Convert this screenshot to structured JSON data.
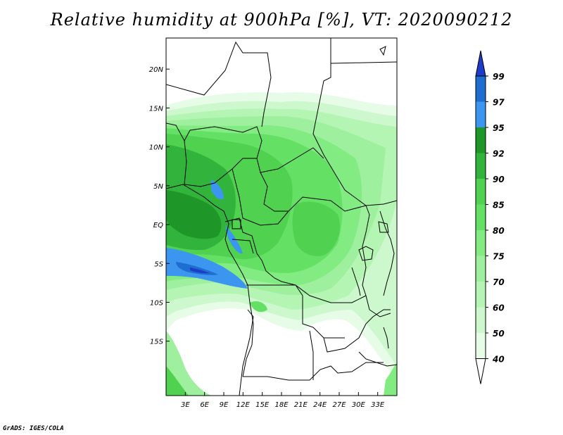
{
  "title": "Relative humidity at 900hPa [%], VT: 2020090212",
  "credit": "GrADS: IGES/COLA",
  "map": {
    "lon_range": [
      0,
      36
    ],
    "lat_range": [
      -22,
      24
    ],
    "lat_ticks": [
      {
        "value": 20,
        "label": "20N"
      },
      {
        "value": 15,
        "label": "15N"
      },
      {
        "value": 10,
        "label": "10N"
      },
      {
        "value": 5,
        "label": "5N"
      },
      {
        "value": 0,
        "label": "EQ"
      },
      {
        "value": -5,
        "label": "5S"
      },
      {
        "value": -10,
        "label": "10S"
      },
      {
        "value": -15,
        "label": "15S"
      }
    ],
    "lon_ticks": [
      {
        "value": 3,
        "label": "3E"
      },
      {
        "value": 6,
        "label": "6E"
      },
      {
        "value": 9,
        "label": "9E"
      },
      {
        "value": 12,
        "label": "12E"
      },
      {
        "value": 15,
        "label": "15E"
      },
      {
        "value": 18,
        "label": "18E"
      },
      {
        "value": 21,
        "label": "21E"
      },
      {
        "value": 24,
        "label": "24E"
      },
      {
        "value": 27,
        "label": "27E"
      },
      {
        "value": 30,
        "label": "30E"
      },
      {
        "value": 33,
        "label": "33E"
      }
    ]
  },
  "colorbar": {
    "levels": [
      "99",
      "97",
      "95",
      "92",
      "90",
      "85",
      "80",
      "75",
      "70",
      "60",
      "50",
      "40"
    ],
    "colors": [
      "#1e6ed2",
      "#3c96f0",
      "#1e9628",
      "#32b43c",
      "#50d250",
      "#64e164",
      "#82eb82",
      "#9ef09e",
      "#b4f5b4",
      "#cdf8cd",
      "#e6fce6",
      "#ffffff"
    ],
    "top_arrow_color": "#1e3cc8"
  }
}
